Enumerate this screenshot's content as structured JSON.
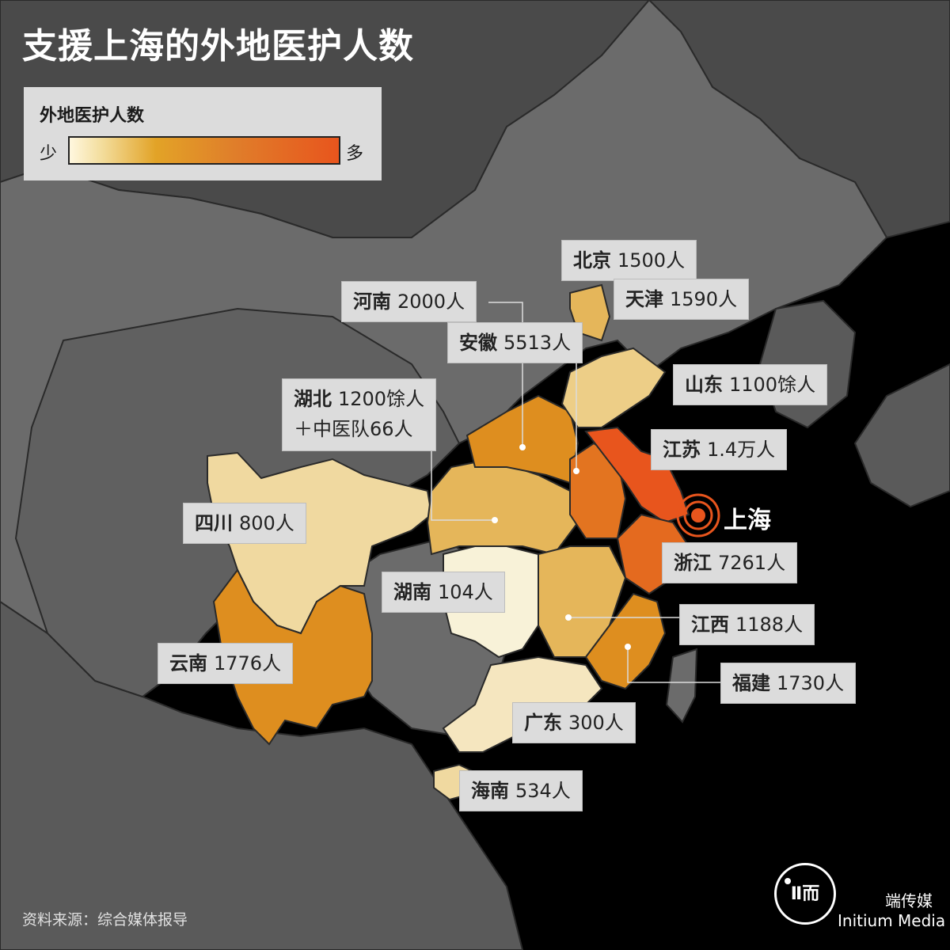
{
  "title": "支援上海的外地医护人数",
  "legend": {
    "title": "外地医护人数",
    "low_label": "少",
    "high_label": "多"
  },
  "colors": {
    "background_sea": "#000000",
    "land_other": "#6b6b6b",
    "land_north": "#4a4a4a",
    "border": "#2a2a2a",
    "label_bg": "#dcdcdc",
    "level_1": "#fff7df",
    "level_2": "#f5e6bf",
    "level_3": "#edce87",
    "level_4": "#e5b65a",
    "level_5": "#de8e1f",
    "level_6": "#e37420",
    "level_7": "#e8551d"
  },
  "regions": [
    {
      "name": "北京",
      "value": "1500人",
      "color": "#edce87"
    },
    {
      "name": "天津",
      "value": "1590人",
      "color": "#e5b65a"
    },
    {
      "name": "河南",
      "value": "2000人",
      "color": "#de8e1f"
    },
    {
      "name": "安徽",
      "value": "5513人",
      "color": "#e37420"
    },
    {
      "name": "山东",
      "value": "1100馀人",
      "color": "#edce87"
    },
    {
      "name": "湖北",
      "value": "1200馀人",
      "value2": "＋中医队66人",
      "color": "#e5b65a"
    },
    {
      "name": "江苏",
      "value": "1.4万人",
      "color": "#e8551d"
    },
    {
      "name": "四川",
      "value": "800人",
      "color": "#f0d9a0"
    },
    {
      "name": "浙江",
      "value": "7261人",
      "color": "#e46a1f"
    },
    {
      "name": "湖南",
      "value": "104人",
      "color": "#fff7df"
    },
    {
      "name": "江西",
      "value": "1188人",
      "color": "#e5b65a"
    },
    {
      "name": "云南",
      "value": "1776人",
      "color": "#de8e1f"
    },
    {
      "name": "福建",
      "value": "1730人",
      "color": "#de8e1f"
    },
    {
      "name": "广东",
      "value": "300人",
      "color": "#f5e6bf"
    },
    {
      "name": "海南",
      "value": "534人",
      "color": "#f0d9a0"
    }
  ],
  "destination": "上海",
  "source": "资料来源：综合媒体报导",
  "brand": {
    "logo_text": "Ⅱ而",
    "cn": "端传媒",
    "en": "Initium Media"
  }
}
